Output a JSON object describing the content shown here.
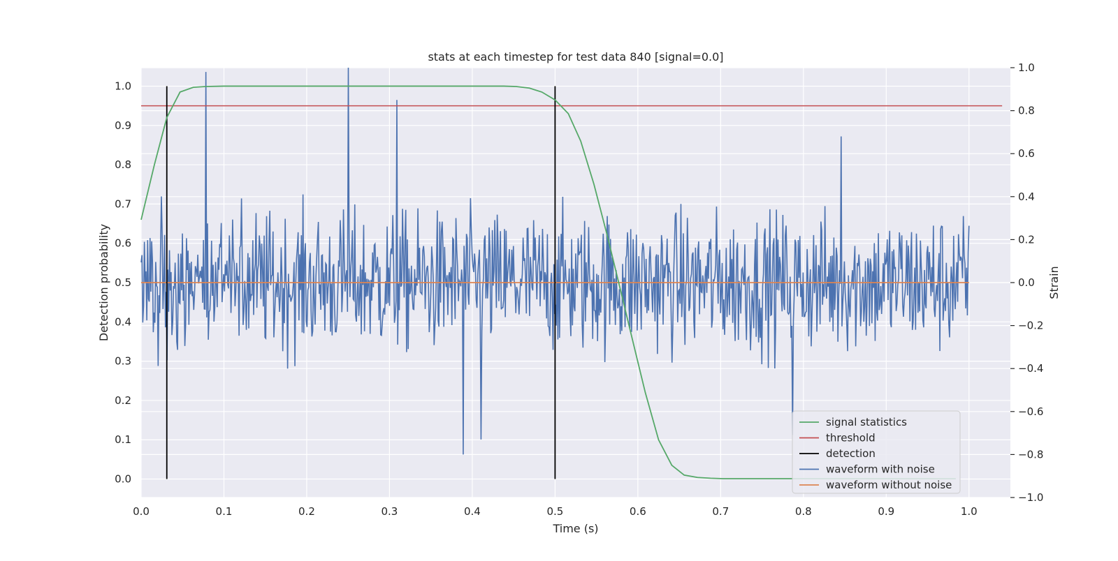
{
  "chart_data": {
    "type": "line",
    "title": "stats at each timestep for test data 840 [signal=0.0]",
    "xlabel": "Time (s)",
    "ylabel": "Detection probability",
    "y2label": "Strain",
    "xlim": [
      0.0,
      1.05
    ],
    "ylim": [
      -0.047,
      1.047
    ],
    "y2lim": [
      -1.0,
      1.0
    ],
    "xticks": [
      0.0,
      0.1,
      0.2,
      0.3,
      0.4,
      0.5,
      0.6,
      0.7,
      0.8,
      0.9,
      1.0
    ],
    "xtick_labels": [
      "0.0",
      "0.1",
      "0.2",
      "0.3",
      "0.4",
      "0.5",
      "0.6",
      "0.7",
      "0.8",
      "0.9",
      "1.0"
    ],
    "yticks": [
      0.0,
      0.1,
      0.2,
      0.3,
      0.4,
      0.5,
      0.6,
      0.7,
      0.8,
      0.9,
      1.0
    ],
    "ytick_labels": [
      "0.0",
      "0.1",
      "0.2",
      "0.3",
      "0.4",
      "0.5",
      "0.6",
      "0.7",
      "0.8",
      "0.9",
      "1.0"
    ],
    "y2ticks": [
      -1.0,
      -0.8,
      -0.6,
      -0.4,
      -0.2,
      0.0,
      0.2,
      0.4,
      0.6,
      0.8,
      1.0
    ],
    "y2tick_labels": [
      "−1.0",
      "−0.8",
      "−0.6",
      "−0.4",
      "−0.2",
      "0.0",
      "0.2",
      "0.4",
      "0.6",
      "0.8",
      "1.0"
    ],
    "grid": true,
    "legend_position": "bottom-right",
    "colors": {
      "background": "#eaeaf2",
      "grid": "#ffffff",
      "signal_statistics": "#55a868",
      "threshold": "#c44e52",
      "detection": "#000000",
      "waveform_with_noise": "#4c72b0",
      "waveform_without_noise": "#dd8452"
    },
    "series": [
      {
        "name": "signal statistics",
        "axis": "left",
        "x": [
          0.0,
          0.016,
          0.031,
          0.047,
          0.063,
          0.078,
          0.1,
          0.2,
          0.3,
          0.4,
          0.438,
          0.453,
          0.469,
          0.484,
          0.5,
          0.516,
          0.531,
          0.547,
          0.563,
          0.578,
          0.594,
          0.609,
          0.625,
          0.641,
          0.656,
          0.672,
          0.688,
          0.703,
          0.75,
          0.8,
          0.85,
          0.9,
          0.95,
          0.984
        ],
        "y": [
          0.66,
          0.8,
          0.92,
          0.985,
          0.997,
          0.999,
          1.0,
          1.0,
          1.0,
          1.0,
          1.0,
          0.999,
          0.995,
          0.985,
          0.965,
          0.93,
          0.86,
          0.75,
          0.62,
          0.49,
          0.35,
          0.22,
          0.1,
          0.035,
          0.01,
          0.004,
          0.002,
          0.001,
          0.001,
          0.001,
          0.001,
          0.001,
          0.001,
          0.001
        ]
      },
      {
        "name": "threshold",
        "axis": "left",
        "x": [
          0.0,
          1.04
        ],
        "y": [
          0.95,
          0.95
        ]
      },
      {
        "name": "detection",
        "axis": "left",
        "x": [
          0.031,
          0.5
        ],
        "y_range": [
          0.0,
          1.0
        ]
      },
      {
        "name": "waveform with noise",
        "axis": "right",
        "x_range": [
          0.0,
          1.0
        ],
        "samples": 1024,
        "amplitude_range": [
          -0.86,
          1.0
        ],
        "notable_peaks": [
          {
            "x": 0.078,
            "y": 0.98
          },
          {
            "x": 0.25,
            "y": 1.0
          },
          {
            "x": 0.309,
            "y": 0.85
          },
          {
            "x": 0.389,
            "y": -0.8
          },
          {
            "x": 0.411,
            "y": -0.73
          },
          {
            "x": 0.846,
            "y": 0.68
          },
          {
            "x": 0.787,
            "y": -0.71
          }
        ]
      },
      {
        "name": "waveform without noise",
        "axis": "right",
        "x": [
          0.0,
          1.0
        ],
        "y": [
          0.0,
          0.0
        ]
      }
    ]
  }
}
